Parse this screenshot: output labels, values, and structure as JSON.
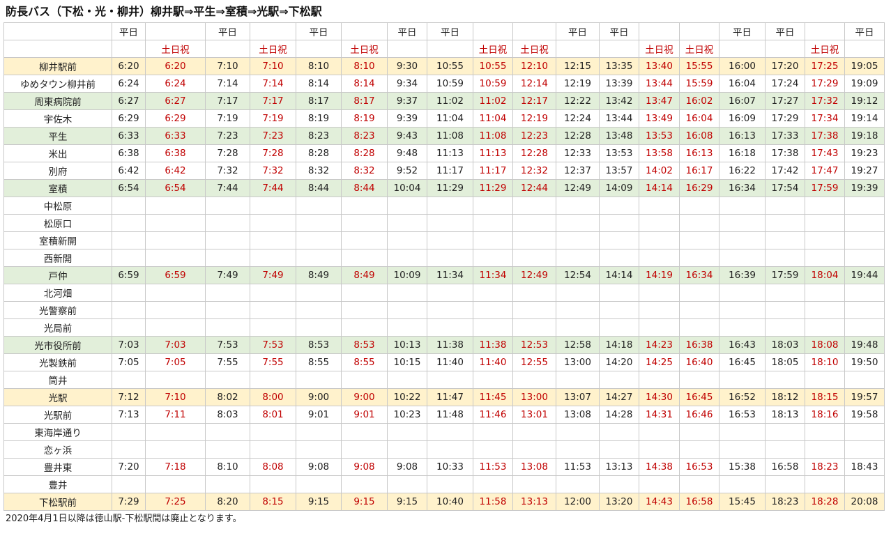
{
  "title": "防長バス（下松・光・柳井）柳井駅⇒平生⇒室積⇒光駅⇒下松駅",
  "colors": {
    "weekend_text": "#c00000",
    "major_stop_yellow": "#fff2cc",
    "major_stop_green": "#e2efda",
    "grid": "#c8c8c8"
  },
  "header": {
    "row1": [
      "",
      "平日",
      "",
      "平日",
      "",
      "平日",
      "",
      "平日",
      "平日",
      "",
      "",
      "平日",
      "平日",
      "",
      "",
      "平日",
      "平日",
      "",
      "平日"
    ],
    "row2": [
      "",
      "",
      "土日祝",
      "",
      "土日祝",
      "",
      "土日祝",
      "",
      "",
      "土日祝",
      "土日祝",
      "",
      "",
      "土日祝",
      "土日祝",
      "",
      "",
      "土日祝",
      ""
    ]
  },
  "weekend_columns": [
    2,
    4,
    6,
    9,
    10,
    13,
    14,
    17
  ],
  "rows": [
    {
      "stop": "柳井駅前",
      "hl": "yellow",
      "times": [
        "6:20",
        "6:20",
        "7:10",
        "7:10",
        "8:10",
        "8:10",
        "9:30",
        "10:55",
        "10:55",
        "12:10",
        "12:15",
        "13:35",
        "13:40",
        "15:55",
        "16:00",
        "17:20",
        "17:25",
        "19:05"
      ]
    },
    {
      "stop": "ゆめタウン柳井前",
      "hl": "",
      "times": [
        "6:24",
        "6:24",
        "7:14",
        "7:14",
        "8:14",
        "8:14",
        "9:34",
        "10:59",
        "10:59",
        "12:14",
        "12:19",
        "13:39",
        "13:44",
        "15:59",
        "16:04",
        "17:24",
        "17:29",
        "19:09"
      ]
    },
    {
      "stop": "周東病院前",
      "hl": "green",
      "times": [
        "6:27",
        "6:27",
        "7:17",
        "7:17",
        "8:17",
        "8:17",
        "9:37",
        "11:02",
        "11:02",
        "12:17",
        "12:22",
        "13:42",
        "13:47",
        "16:02",
        "16:07",
        "17:27",
        "17:32",
        "19:12"
      ]
    },
    {
      "stop": "宇佐木",
      "hl": "",
      "times": [
        "6:29",
        "6:29",
        "7:19",
        "7:19",
        "8:19",
        "8:19",
        "9:39",
        "11:04",
        "11:04",
        "12:19",
        "12:24",
        "13:44",
        "13:49",
        "16:04",
        "16:09",
        "17:29",
        "17:34",
        "19:14"
      ]
    },
    {
      "stop": "平生",
      "hl": "green",
      "times": [
        "6:33",
        "6:33",
        "7:23",
        "7:23",
        "8:23",
        "8:23",
        "9:43",
        "11:08",
        "11:08",
        "12:23",
        "12:28",
        "13:48",
        "13:53",
        "16:08",
        "16:13",
        "17:33",
        "17:38",
        "19:18"
      ]
    },
    {
      "stop": "米出",
      "hl": "",
      "times": [
        "6:38",
        "6:38",
        "7:28",
        "7:28",
        "8:28",
        "8:28",
        "9:48",
        "11:13",
        "11:13",
        "12:28",
        "12:33",
        "13:53",
        "13:58",
        "16:13",
        "16:18",
        "17:38",
        "17:43",
        "19:23"
      ]
    },
    {
      "stop": "別府",
      "hl": "",
      "times": [
        "6:42",
        "6:42",
        "7:32",
        "7:32",
        "8:32",
        "8:32",
        "9:52",
        "11:17",
        "11:17",
        "12:32",
        "12:37",
        "13:57",
        "14:02",
        "16:17",
        "16:22",
        "17:42",
        "17:47",
        "19:27"
      ]
    },
    {
      "stop": "室積",
      "hl": "green",
      "times": [
        "6:54",
        "6:54",
        "7:44",
        "7:44",
        "8:44",
        "8:44",
        "10:04",
        "11:29",
        "11:29",
        "12:44",
        "12:49",
        "14:09",
        "14:14",
        "16:29",
        "16:34",
        "17:54",
        "17:59",
        "19:39"
      ]
    },
    {
      "stop": "中松原",
      "hl": "",
      "times": [
        "",
        "",
        "",
        "",
        "",
        "",
        "",
        "",
        "",
        "",
        "",
        "",
        "",
        "",
        "",
        "",
        "",
        ""
      ]
    },
    {
      "stop": "松原口",
      "hl": "",
      "times": [
        "",
        "",
        "",
        "",
        "",
        "",
        "",
        "",
        "",
        "",
        "",
        "",
        "",
        "",
        "",
        "",
        "",
        ""
      ]
    },
    {
      "stop": "室積新開",
      "hl": "",
      "times": [
        "",
        "",
        "",
        "",
        "",
        "",
        "",
        "",
        "",
        "",
        "",
        "",
        "",
        "",
        "",
        "",
        "",
        ""
      ]
    },
    {
      "stop": "西新開",
      "hl": "",
      "times": [
        "",
        "",
        "",
        "",
        "",
        "",
        "",
        "",
        "",
        "",
        "",
        "",
        "",
        "",
        "",
        "",
        "",
        ""
      ]
    },
    {
      "stop": "戸仲",
      "hl": "green",
      "times": [
        "6:59",
        "6:59",
        "7:49",
        "7:49",
        "8:49",
        "8:49",
        "10:09",
        "11:34",
        "11:34",
        "12:49",
        "12:54",
        "14:14",
        "14:19",
        "16:34",
        "16:39",
        "17:59",
        "18:04",
        "19:44"
      ]
    },
    {
      "stop": "北河畑",
      "hl": "",
      "times": [
        "",
        "",
        "",
        "",
        "",
        "",
        "",
        "",
        "",
        "",
        "",
        "",
        "",
        "",
        "",
        "",
        "",
        ""
      ]
    },
    {
      "stop": "光警察前",
      "hl": "",
      "times": [
        "",
        "",
        "",
        "",
        "",
        "",
        "",
        "",
        "",
        "",
        "",
        "",
        "",
        "",
        "",
        "",
        "",
        ""
      ]
    },
    {
      "stop": "光局前",
      "hl": "",
      "times": [
        "",
        "",
        "",
        "",
        "",
        "",
        "",
        "",
        "",
        "",
        "",
        "",
        "",
        "",
        "",
        "",
        "",
        ""
      ]
    },
    {
      "stop": "光市役所前",
      "hl": "green",
      "times": [
        "7:03",
        "7:03",
        "7:53",
        "7:53",
        "8:53",
        "8:53",
        "10:13",
        "11:38",
        "11:38",
        "12:53",
        "12:58",
        "14:18",
        "14:23",
        "16:38",
        "16:43",
        "18:03",
        "18:08",
        "19:48"
      ]
    },
    {
      "stop": "光製鉄前",
      "hl": "",
      "times": [
        "7:05",
        "7:05",
        "7:55",
        "7:55",
        "8:55",
        "8:55",
        "10:15",
        "11:40",
        "11:40",
        "12:55",
        "13:00",
        "14:20",
        "14:25",
        "16:40",
        "16:45",
        "18:05",
        "18:10",
        "19:50"
      ]
    },
    {
      "stop": "筒井",
      "hl": "",
      "times": [
        "",
        "",
        "",
        "",
        "",
        "",
        "",
        "",
        "",
        "",
        "",
        "",
        "",
        "",
        "",
        "",
        "",
        ""
      ]
    },
    {
      "stop": "光駅",
      "hl": "yellow",
      "times": [
        "7:12",
        "7:10",
        "8:02",
        "8:00",
        "9:00",
        "9:00",
        "10:22",
        "11:47",
        "11:45",
        "13:00",
        "13:07",
        "14:27",
        "14:30",
        "16:45",
        "16:52",
        "18:12",
        "18:15",
        "19:57"
      ]
    },
    {
      "stop": "光駅前",
      "hl": "",
      "times": [
        "7:13",
        "7:11",
        "8:03",
        "8:01",
        "9:01",
        "9:01",
        "10:23",
        "11:48",
        "11:46",
        "13:01",
        "13:08",
        "14:28",
        "14:31",
        "16:46",
        "16:53",
        "18:13",
        "18:16",
        "19:58"
      ]
    },
    {
      "stop": "東海岸通り",
      "hl": "",
      "times": [
        "",
        "",
        "",
        "",
        "",
        "",
        "",
        "",
        "",
        "",
        "",
        "",
        "",
        "",
        "",
        "",
        "",
        ""
      ]
    },
    {
      "stop": "恋ヶ浜",
      "hl": "",
      "times": [
        "",
        "",
        "",
        "",
        "",
        "",
        "",
        "",
        "",
        "",
        "",
        "",
        "",
        "",
        "",
        "",
        "",
        ""
      ]
    },
    {
      "stop": "豊井東",
      "hl": "",
      "times": [
        "7:20",
        "7:18",
        "8:10",
        "8:08",
        "9:08",
        "9:08",
        "9:08",
        "10:33",
        "11:53",
        "13:08",
        "11:53",
        "13:13",
        "14:38",
        "16:53",
        "15:38",
        "16:58",
        "18:23",
        "18:43"
      ]
    },
    {
      "stop": "豊井",
      "hl": "",
      "times": [
        "",
        "",
        "",
        "",
        "",
        "",
        "",
        "",
        "",
        "",
        "",
        "",
        "",
        "",
        "",
        "",
        "",
        ""
      ]
    },
    {
      "stop": "下松駅前",
      "hl": "yellow",
      "times": [
        "7:29",
        "7:25",
        "8:20",
        "8:15",
        "9:15",
        "9:15",
        "9:15",
        "10:40",
        "11:58",
        "13:13",
        "12:00",
        "13:20",
        "14:43",
        "16:58",
        "15:45",
        "18:23",
        "18:28",
        "20:08"
      ]
    }
  ],
  "footnote": "2020年4月1日以降は徳山駅-下松駅間は廃止となります。"
}
